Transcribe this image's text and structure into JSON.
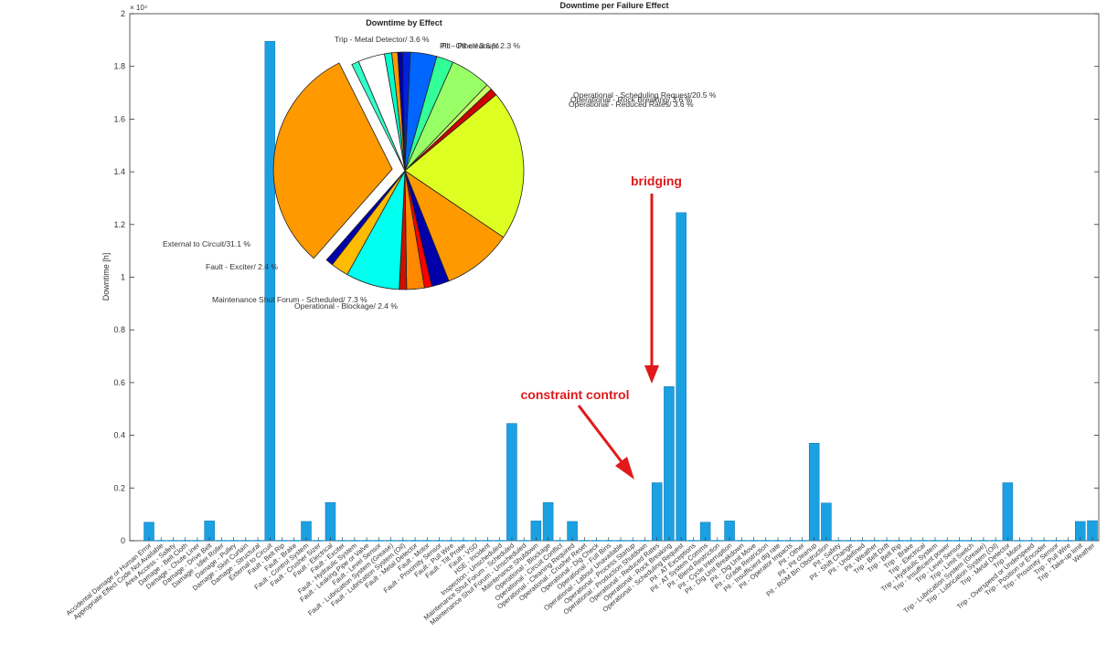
{
  "chart_data": {
    "type": "bar",
    "title": "Downtime per Failure Effect",
    "xlabel": "",
    "ylabel": "Downtime [h]",
    "y_exponent_label": "× 10⁴",
    "ylim": [
      0,
      20000
    ],
    "yticks": [
      0,
      2000,
      4000,
      6000,
      8000,
      10000,
      12000,
      14000,
      16000,
      18000,
      20000
    ],
    "ytick_labels": [
      "0",
      "0.2",
      "0.4",
      "0.6",
      "0.8",
      "1",
      "1.2",
      "1.4",
      "1.6",
      "1.8",
      "2"
    ],
    "grid": false,
    "bar_color": "#1ba1e2",
    "categories": [
      "Accidental Damage or Human Error",
      "Appropriate Effect Code Not Available",
      "Area Access - Safety",
      "Damage - Belt Cloth",
      "Damage - Chute Liner",
      "Damage - Drive Belt",
      "Damage - Idler Roller",
      "Damage - Pulley",
      "Damage - Skirt Curtain",
      "Damage - Structural",
      "External to Circuit",
      "Fault - Belt Rip",
      "Fault - Brake",
      "Fault - Control System",
      "Fault - Crusher Sizer",
      "Fault - Electrical",
      "Fault - Exciter",
      "Fault - Hydraulic System",
      "Fault - Leaking Pipe or Valve",
      "Fault - Level Sensor",
      "Fault - Lubrication System (Grease)",
      "Fault - Lubrication System (Oil)",
      "Fault - Metal Detector",
      "Fault - Motor",
      "Fault - Proximity Sensor",
      "Fault - Pull Wire",
      "Fault - Tilt Probe",
      "Fault - VSD",
      "HSE - Incident",
      "Inspection - Unscheduled",
      "Maintenance Shut Forum - Scheduled",
      "Maintenance Shut Forum - Unscheduled",
      "Maintenance Shutdown",
      "Operational - Blockage",
      "Operational - Circuit Conflict",
      "Operational - Cleaning Required",
      "Operational - Crusher Reset",
      "Operational - Dig Check",
      "Operational - Full Bins",
      "Operational - Labour Unavailable",
      "Operational - Process Startup",
      "Operational - Production Shutdown",
      "Operational - Reduced Rates",
      "Operational - Rock Breaking",
      "Operational - Scheduling Request",
      "Pit - AT Exceptions",
      "Pit - AT System Comms",
      "Pit - Blend Restriction",
      "Pit - Cycle Interruption",
      "Pit - Dig Unit Breakdown",
      "Pit - Dig Unit Move",
      "Pit - Grade Restriction",
      "Pit - Insufficient dig rate",
      "Pit - Operator Impacts",
      "Pit - Other",
      "Pit - Pit cleanup",
      "Pit - ROM Bin Obstruction",
      "Pit - Safety",
      "Pit - Shift Change",
      "Pit - Undefined",
      "Pit - Weather",
      "Trip - Belt Drift",
      "Trip - Belt Rip",
      "Trip - Brake",
      "Trip - Electrical",
      "Trip - Hydraulic System",
      "Trip - Insufficient power",
      "Trip - Level Sensor",
      "Trip - Limit Switch",
      "Trip - Lubrication System (Grease)",
      "Trip - Lubrication System (Oil)",
      "Trip - Metal Detector",
      "Trip - Motor",
      "Trip - Overspeed or Underspeed",
      "Trip - Position or Encoder",
      "Trip - Proximity Sensor",
      "Trip - Pull Wire",
      "Trip - Take-up limit",
      "Weather"
    ],
    "values": [
      700,
      0,
      0,
      0,
      0,
      750,
      0,
      0,
      0,
      0,
      18950,
      0,
      0,
      730,
      0,
      1450,
      0,
      0,
      0,
      0,
      0,
      0,
      0,
      0,
      0,
      0,
      0,
      0,
      0,
      0,
      4450,
      0,
      750,
      1450,
      0,
      730,
      0,
      0,
      0,
      0,
      0,
      0,
      2200,
      5850,
      12450,
      0,
      700,
      0,
      750,
      0,
      0,
      0,
      0,
      0,
      0,
      3700,
      1430,
      0,
      0,
      0,
      0,
      0,
      0,
      0,
      0,
      0,
      0,
      0,
      0,
      0,
      0,
      2200,
      0,
      0,
      0,
      0,
      0,
      730,
      760
    ],
    "inset_pie": {
      "type": "pie",
      "title": "Downtime by Effect",
      "slices": [
        {
          "value": 1.0,
          "color": "#00ffcc"
        },
        {
          "value": 0.8,
          "color": "#ff9900"
        },
        {
          "value": 0.7,
          "color": "#0000aa"
        },
        {
          "value": 1.0,
          "color": "#0022dd"
        },
        {
          "value": 3.6,
          "color": "#0066ff"
        },
        {
          "value": 2.3,
          "color": "#33ff99"
        },
        {
          "value": 5.5,
          "color": "#99ff66"
        },
        {
          "value": 0.8,
          "color": "#ccff66"
        },
        {
          "value": 1.0,
          "color": "#cc0000"
        },
        {
          "value": 20.5,
          "color": "#ddff22"
        },
        {
          "value": 9.5,
          "color": "#ff9900"
        },
        {
          "value": 2.4,
          "color": "#0000aa"
        },
        {
          "value": 1.0,
          "color": "#ff0000"
        },
        {
          "value": 2.4,
          "color": "#ff8800"
        },
        {
          "value": 1.0,
          "color": "#cc1100"
        },
        {
          "value": 7.3,
          "color": "#00ffee"
        },
        {
          "value": 2.4,
          "color": "#ffbb00"
        },
        {
          "value": 1.0,
          "color": "#0000aa"
        },
        {
          "value": 31.1,
          "color": "#ff9900"
        },
        {
          "value": 1.0,
          "color": "#33ffcc"
        },
        {
          "value": 3.6,
          "color": "#ffffff"
        }
      ],
      "labels": [
        "Trip - Metal Detector/ 3.6 %",
        "Pit - Other/ 3.6 %",
        "Pit - Pit cleanup/ 2.3 %",
        "Operational - Scheduling Request/20.5 %",
        "Operational - Rock Breaking/ 3.6 %",
        "Operational - Reduced Rates/ 3.6 %",
        "External to Circuit/31.1 %",
        "Fault - Exciter/ 2.4 %",
        "Maintenance Shut Forum - Scheduled/ 7.3 %",
        "Operational - Blockage/ 2.4 %"
      ]
    },
    "annotations": [
      {
        "text": "bridging",
        "target_category": "Operational - Rock Breaking"
      },
      {
        "text": "constraint control",
        "target_category": "Operational - Reduced Rates"
      }
    ]
  }
}
